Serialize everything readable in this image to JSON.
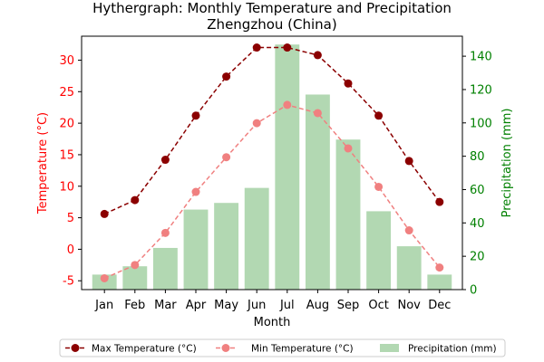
{
  "chart_data": {
    "type": "bar+line",
    "title": "Hythergraph: Monthly Temperature and Precipitation",
    "subtitle": "Zhengzhou (China)",
    "xlabel": "Month",
    "ylabel_left": "Temperature (°C)",
    "ylabel_right": "Precipitation (mm)",
    "categories": [
      "Jan",
      "Feb",
      "Mar",
      "Apr",
      "May",
      "Jun",
      "Jul",
      "Aug",
      "Sep",
      "Oct",
      "Nov",
      "Dec"
    ],
    "ylim_left": [
      -6.4,
      33.8
    ],
    "yticks_left": [
      -5,
      0,
      5,
      10,
      15,
      20,
      25,
      30
    ],
    "ylim_right": [
      0,
      152
    ],
    "yticks_right": [
      0,
      20,
      40,
      60,
      80,
      100,
      120,
      140
    ],
    "series": [
      {
        "name": "Max Temperature (°C)",
        "type": "line",
        "axis": "left",
        "color": "#8b0000",
        "values": [
          5.6,
          7.8,
          14.2,
          21.2,
          27.4,
          32.0,
          32.0,
          30.8,
          26.3,
          21.2,
          14.0,
          7.5
        ]
      },
      {
        "name": "Min Temperature (°C)",
        "type": "line",
        "axis": "left",
        "color": "#f08080",
        "values": [
          -4.6,
          -2.5,
          2.6,
          9.1,
          14.6,
          20.0,
          22.9,
          21.6,
          16.0,
          9.9,
          3.0,
          -2.9
        ]
      },
      {
        "name": "Precipitation (mm)",
        "type": "bar",
        "axis": "right",
        "color": "#b2d8b2",
        "values": [
          9,
          14,
          25,
          48,
          52,
          61,
          147,
          117,
          90,
          47,
          26,
          9
        ]
      }
    ],
    "legend": "bottom",
    "grid": false,
    "left_axis_color": "#ff0000",
    "right_axis_color": "#008000"
  }
}
